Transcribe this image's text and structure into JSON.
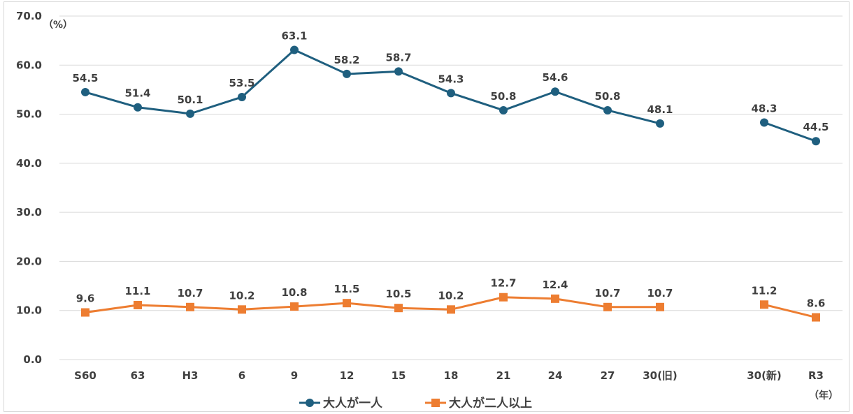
{
  "chart_data": {
    "type": "line",
    "categories": [
      "S60",
      "63",
      "H3",
      "6",
      "9",
      "12",
      "15",
      "18",
      "21",
      "24",
      "27",
      "30(旧)",
      "30(新)",
      "R3"
    ],
    "y_unit_label": "（%）",
    "x_unit_label": "（年）",
    "ylim": [
      0,
      70
    ],
    "y_ticks": [
      "0.0",
      "10.0",
      "20.0",
      "30.0",
      "40.0",
      "50.0",
      "60.0",
      "70.0"
    ],
    "grid": true,
    "legend_position": "bottom",
    "series": [
      {
        "name": "大人が一人",
        "color": "#1f5f7f",
        "marker": "circle",
        "values": [
          54.5,
          51.4,
          50.1,
          53.5,
          63.1,
          58.2,
          58.7,
          54.3,
          50.8,
          54.6,
          50.8,
          48.1,
          48.3,
          44.5
        ],
        "labels": [
          "54.5",
          "51.4",
          "50.1",
          "53.5",
          "63.1",
          "58.2",
          "58.7",
          "54.3",
          "50.8",
          "54.6",
          "50.8",
          "48.1",
          "48.3",
          "44.5"
        ]
      },
      {
        "name": "大人が二人以上",
        "color": "#ed7d31",
        "marker": "square",
        "values": [
          9.6,
          11.1,
          10.7,
          10.2,
          10.8,
          11.5,
          10.5,
          10.2,
          12.7,
          12.4,
          10.7,
          10.7,
          11.2,
          8.6
        ],
        "labels": [
          "9.6",
          "11.1",
          "10.7",
          "10.2",
          "10.8",
          "11.5",
          "10.5",
          "10.2",
          "12.7",
          "12.4",
          "10.7",
          "10.7",
          "11.2",
          "8.6"
        ]
      }
    ]
  }
}
